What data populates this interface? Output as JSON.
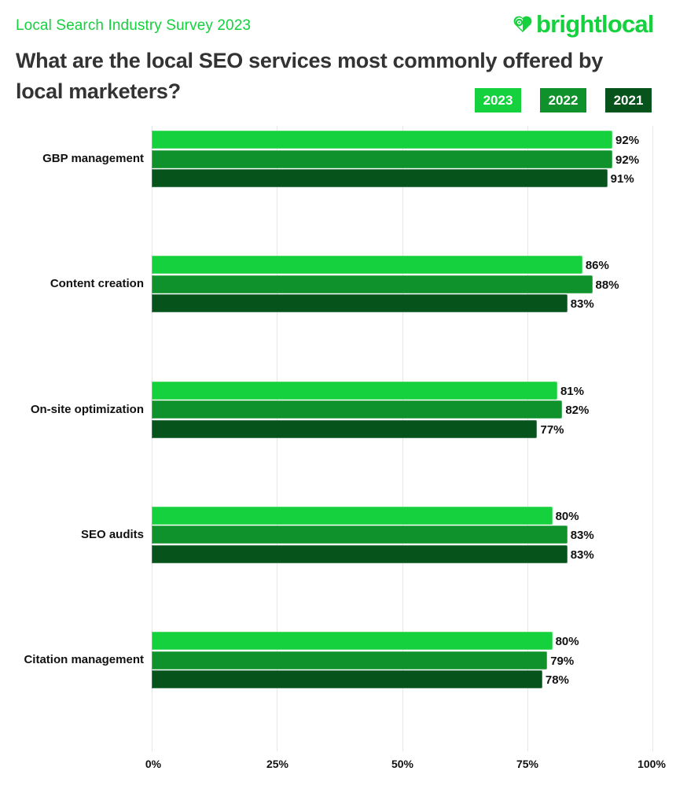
{
  "header": {
    "survey_label": "Local Search Industry Survey 2023",
    "logo_text": "brightlocal",
    "logo_icon": "heart-pin-icon",
    "title": "What are the local SEO services most commonly offered by local marketers?"
  },
  "colors": {
    "brand": "#14d13d",
    "series_2023": "#14d13d",
    "series_2022": "#0f922b",
    "series_2021": "#06531b",
    "title": "#333333",
    "gridline": "#e6e6e6"
  },
  "legend": [
    {
      "label": "2023",
      "color": "#14d13d"
    },
    {
      "label": "2022",
      "color": "#0f922b"
    },
    {
      "label": "2021",
      "color": "#06531b"
    }
  ],
  "chart_data": {
    "type": "bar",
    "orientation": "horizontal",
    "title": "What are the local SEO services most commonly offered by local marketers?",
    "subtitle": "Local Search Industry Survey 2023",
    "xlabel": "",
    "ylabel": "",
    "xlim": [
      0,
      100
    ],
    "x_ticks": [
      "0%",
      "25%",
      "50%",
      "75%",
      "100%"
    ],
    "grid": true,
    "legend_position": "top-right",
    "categories": [
      "GBP management",
      "Content creation",
      "On-site optimization",
      "SEO audits",
      "Citation management"
    ],
    "series": [
      {
        "name": "2023",
        "color": "#14d13d",
        "values": [
          92,
          86,
          81,
          80,
          80
        ],
        "labels": [
          "92%",
          "86%",
          "81%",
          "80%",
          "80%"
        ]
      },
      {
        "name": "2022",
        "color": "#0f922b",
        "values": [
          92,
          88,
          82,
          83,
          79
        ],
        "labels": [
          "92%",
          "88%",
          "82%",
          "83%",
          "79%"
        ]
      },
      {
        "name": "2021",
        "color": "#06531b",
        "values": [
          91,
          83,
          77,
          83,
          78
        ],
        "labels": [
          "91%",
          "83%",
          "77%",
          "83%",
          "78%"
        ]
      }
    ]
  }
}
